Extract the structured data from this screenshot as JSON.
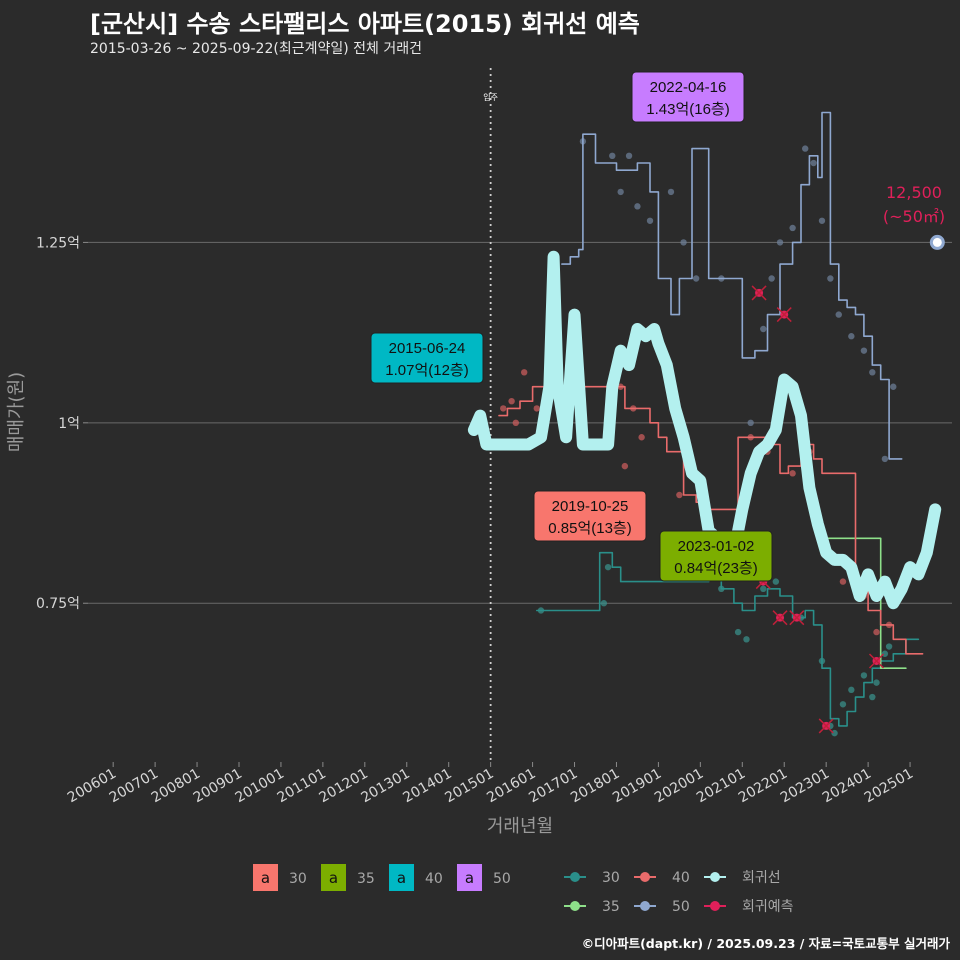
{
  "header": {
    "title": "[군산시] 수송 스타팰리스 아파트(2015) 회귀선 예측",
    "subtitle": "2015-03-26 ~ 2025-09-22(최근계약일) 전체 거래건",
    "caption": "©디아파트(dapt.kr) / 2025.09.23 / 자료=국토교통부 실거래가"
  },
  "chart_data": {
    "type": "line",
    "xlabel": "거래년월",
    "ylabel": "매매가(원)",
    "x_ticks": [
      "200601",
      "200701",
      "200801",
      "200901",
      "201001",
      "201101",
      "201201",
      "201301",
      "201401",
      "201501",
      "201601",
      "201701",
      "201801",
      "201901",
      "202001",
      "202101",
      "202201",
      "202301",
      "202401",
      "202501"
    ],
    "y_ticks": [
      {
        "value": 0.75,
        "label": "0.75억"
      },
      {
        "value": 1.0,
        "label": "1억"
      },
      {
        "value": 1.25,
        "label": "1.25억"
      }
    ],
    "xlim": [
      2005.4,
      2026.0
    ],
    "ylim": [
      0.53,
      1.5
    ],
    "move_in": {
      "x": 2015.0,
      "label": "입주"
    },
    "series": [
      {
        "name": "30",
        "color": "#2a8f8a",
        "points": [
          [
            2016.1,
            0.74
          ],
          [
            2016.4,
            0.74
          ],
          [
            2017.6,
            0.82
          ],
          [
            2017.9,
            0.8
          ],
          [
            2018.1,
            0.78
          ],
          [
            2018.3,
            0.78
          ],
          [
            2020.2,
            0.82
          ],
          [
            2020.5,
            0.77
          ],
          [
            2020.8,
            0.75
          ],
          [
            2021.0,
            0.74
          ],
          [
            2021.3,
            0.76
          ],
          [
            2021.6,
            0.77
          ],
          [
            2021.9,
            0.76
          ],
          [
            2022.2,
            0.73
          ],
          [
            2022.5,
            0.74
          ],
          [
            2022.7,
            0.72
          ],
          [
            2022.9,
            0.66
          ],
          [
            2023.1,
            0.59
          ],
          [
            2023.3,
            0.58
          ],
          [
            2023.5,
            0.6
          ],
          [
            2023.7,
            0.62
          ],
          [
            2023.9,
            0.64
          ],
          [
            2024.1,
            0.66
          ],
          [
            2024.3,
            0.67
          ],
          [
            2024.6,
            0.68
          ],
          [
            2024.9,
            0.7
          ],
          [
            2025.2,
            0.7
          ]
        ]
      },
      {
        "name": "35",
        "color": "#8ee08a",
        "points": [
          [
            2023.0,
            0.84
          ],
          [
            2023.3,
            0.84
          ],
          [
            2024.3,
            0.66
          ],
          [
            2024.9,
            0.66
          ]
        ]
      },
      {
        "name": "40",
        "color": "#e96b6b",
        "points": [
          [
            2015.2,
            1.01
          ],
          [
            2015.4,
            1.02
          ],
          [
            2015.7,
            1.03
          ],
          [
            2016.0,
            1.05
          ],
          [
            2017.2,
            1.05
          ],
          [
            2017.5,
            1.05
          ],
          [
            2017.8,
            1.05
          ],
          [
            2018.2,
            1.02
          ],
          [
            2018.5,
            1.02
          ],
          [
            2018.8,
            1.0
          ],
          [
            2019.0,
            0.98
          ],
          [
            2019.2,
            0.96
          ],
          [
            2019.6,
            0.9
          ],
          [
            2019.9,
            0.89
          ],
          [
            2020.2,
            0.88
          ],
          [
            2020.5,
            0.88
          ],
          [
            2020.9,
            0.98
          ],
          [
            2021.3,
            0.98
          ],
          [
            2021.6,
            0.97
          ],
          [
            2021.9,
            0.93
          ],
          [
            2022.1,
            0.94
          ],
          [
            2022.4,
            0.97
          ],
          [
            2022.7,
            0.95
          ],
          [
            2022.9,
            0.93
          ],
          [
            2023.1,
            0.93
          ],
          [
            2023.7,
            0.77
          ],
          [
            2024.0,
            0.74
          ],
          [
            2024.3,
            0.72
          ],
          [
            2024.6,
            0.7
          ],
          [
            2024.9,
            0.68
          ],
          [
            2025.3,
            0.68
          ]
        ]
      },
      {
        "name": "50",
        "color": "#8fa8d0",
        "points": [
          [
            2016.7,
            1.22
          ],
          [
            2016.9,
            1.23
          ],
          [
            2017.1,
            1.24
          ],
          [
            2017.2,
            1.4
          ],
          [
            2017.5,
            1.36
          ],
          [
            2017.8,
            1.36
          ],
          [
            2018.0,
            1.35
          ],
          [
            2018.3,
            1.35
          ],
          [
            2018.5,
            1.36
          ],
          [
            2018.8,
            1.32
          ],
          [
            2019.0,
            1.2
          ],
          [
            2019.3,
            1.15
          ],
          [
            2019.5,
            1.2
          ],
          [
            2019.8,
            1.38
          ],
          [
            2020.2,
            1.2
          ],
          [
            2020.5,
            1.2
          ],
          [
            2021.0,
            1.09
          ],
          [
            2021.3,
            1.1
          ],
          [
            2021.6,
            1.15
          ],
          [
            2021.9,
            1.22
          ],
          [
            2022.2,
            1.25
          ],
          [
            2022.4,
            1.33
          ],
          [
            2022.6,
            1.37
          ],
          [
            2022.8,
            1.34
          ],
          [
            2022.9,
            1.43
          ],
          [
            2023.1,
            1.22
          ],
          [
            2023.3,
            1.17
          ],
          [
            2023.5,
            1.16
          ],
          [
            2023.7,
            1.15
          ],
          [
            2023.9,
            1.12
          ],
          [
            2024.1,
            1.08
          ],
          [
            2024.3,
            1.06
          ],
          [
            2024.5,
            0.95
          ],
          [
            2024.8,
            0.95
          ]
        ]
      },
      {
        "name": "회귀선",
        "color": "#b3f0ef",
        "points": [
          [
            2014.6,
            0.99
          ],
          [
            2014.75,
            1.01
          ],
          [
            2014.9,
            0.97
          ],
          [
            2015.2,
            0.97
          ],
          [
            2015.6,
            0.97
          ],
          [
            2015.9,
            0.97
          ],
          [
            2016.2,
            0.98
          ],
          [
            2016.4,
            1.05
          ],
          [
            2016.5,
            1.23
          ],
          [
            2016.6,
            1.05
          ],
          [
            2016.8,
            0.98
          ],
          [
            2017.0,
            1.15
          ],
          [
            2017.2,
            0.97
          ],
          [
            2017.5,
            0.97
          ],
          [
            2017.8,
            0.97
          ],
          [
            2017.9,
            1.05
          ],
          [
            2018.1,
            1.1
          ],
          [
            2018.3,
            1.08
          ],
          [
            2018.5,
            1.13
          ],
          [
            2018.7,
            1.12
          ],
          [
            2018.9,
            1.13
          ],
          [
            2019.0,
            1.11
          ],
          [
            2019.2,
            1.08
          ],
          [
            2019.4,
            1.02
          ],
          [
            2019.6,
            0.98
          ],
          [
            2019.8,
            0.93
          ],
          [
            2020.0,
            0.92
          ],
          [
            2020.2,
            0.85
          ],
          [
            2020.4,
            0.84
          ],
          [
            2020.6,
            0.82
          ],
          [
            2020.8,
            0.82
          ],
          [
            2021.0,
            0.88
          ],
          [
            2021.2,
            0.93
          ],
          [
            2021.4,
            0.96
          ],
          [
            2021.6,
            0.97
          ],
          [
            2021.8,
            0.99
          ],
          [
            2022.0,
            1.06
          ],
          [
            2022.2,
            1.05
          ],
          [
            2022.4,
            1.01
          ],
          [
            2022.6,
            0.91
          ],
          [
            2022.8,
            0.86
          ],
          [
            2023.0,
            0.82
          ],
          [
            2023.2,
            0.81
          ],
          [
            2023.4,
            0.81
          ],
          [
            2023.6,
            0.8
          ],
          [
            2023.8,
            0.76
          ],
          [
            2024.0,
            0.79
          ],
          [
            2024.2,
            0.76
          ],
          [
            2024.4,
            0.78
          ],
          [
            2024.6,
            0.75
          ],
          [
            2024.8,
            0.77
          ],
          [
            2025.0,
            0.8
          ],
          [
            2025.2,
            0.79
          ],
          [
            2025.4,
            0.82
          ],
          [
            2025.6,
            0.88
          ]
        ]
      }
    ],
    "scatter": [
      {
        "name": "30",
        "color": "#3a8f8a",
        "points": [
          [
            2016.2,
            0.74
          ],
          [
            2017.8,
            0.8
          ],
          [
            2017.7,
            0.75
          ],
          [
            2020.5,
            0.77
          ],
          [
            2020.9,
            0.71
          ],
          [
            2021.1,
            0.7
          ],
          [
            2021.5,
            0.77
          ],
          [
            2021.8,
            0.78
          ],
          [
            2022.4,
            0.73
          ],
          [
            2022.9,
            0.67
          ],
          [
            2023.1,
            0.58
          ],
          [
            2023.2,
            0.57
          ],
          [
            2023.4,
            0.61
          ],
          [
            2023.6,
            0.63
          ],
          [
            2023.9,
            0.65
          ],
          [
            2024.1,
            0.62
          ],
          [
            2024.2,
            0.64
          ],
          [
            2024.4,
            0.68
          ],
          [
            2024.5,
            0.69
          ]
        ]
      },
      {
        "name": "40",
        "color": "#c85c5c",
        "points": [
          [
            2015.3,
            1.02
          ],
          [
            2015.5,
            1.03
          ],
          [
            2015.6,
            1.0
          ],
          [
            2015.8,
            1.07
          ],
          [
            2016.1,
            1.02
          ],
          [
            2018.1,
            1.05
          ],
          [
            2018.2,
            0.94
          ],
          [
            2018.4,
            1.02
          ],
          [
            2018.6,
            0.98
          ],
          [
            2019.5,
            0.9
          ],
          [
            2021.2,
            0.98
          ],
          [
            2021.6,
            0.96
          ],
          [
            2022.2,
            0.93
          ],
          [
            2022.6,
            0.96
          ],
          [
            2023.4,
            0.78
          ],
          [
            2023.9,
            0.76
          ],
          [
            2024.2,
            0.71
          ],
          [
            2024.5,
            0.72
          ]
        ]
      },
      {
        "name": "50",
        "color": "#6c7e96",
        "points": [
          [
            2017.2,
            1.39
          ],
          [
            2017.9,
            1.37
          ],
          [
            2018.1,
            1.32
          ],
          [
            2018.3,
            1.37
          ],
          [
            2018.5,
            1.3
          ],
          [
            2018.8,
            1.28
          ],
          [
            2019.3,
            1.32
          ],
          [
            2019.6,
            1.25
          ],
          [
            2019.9,
            1.2
          ],
          [
            2020.5,
            1.2
          ],
          [
            2021.2,
            1.0
          ],
          [
            2021.5,
            1.13
          ],
          [
            2021.7,
            1.2
          ],
          [
            2021.9,
            1.25
          ],
          [
            2022.2,
            1.27
          ],
          [
            2022.5,
            1.38
          ],
          [
            2022.7,
            1.36
          ],
          [
            2022.9,
            1.28
          ],
          [
            2023.1,
            1.2
          ],
          [
            2023.3,
            1.15
          ],
          [
            2023.6,
            1.12
          ],
          [
            2023.9,
            1.1
          ],
          [
            2024.1,
            1.07
          ],
          [
            2024.4,
            0.95
          ],
          [
            2024.6,
            1.05
          ]
        ]
      }
    ],
    "predictions": [
      [
        2021.5,
        0.78
      ],
      [
        2021.9,
        0.73
      ],
      [
        2023.0,
        0.58
      ],
      [
        2024.2,
        0.67
      ],
      [
        2022.0,
        1.15
      ],
      [
        2021.4,
        1.18
      ],
      [
        2022.3,
        0.73
      ]
    ],
    "latest_point": {
      "x": 2025.65,
      "y": 1.25,
      "color": "#ffffff",
      "ring": "#8fa8d0"
    },
    "annotations": [
      {
        "date": "2015-06-24",
        "price": "1.07억(12층)",
        "fill": "#00b8c4",
        "x": 2015.5,
        "y": 1.07
      },
      {
        "date": "2022-04-16",
        "price": "1.43억(16층)",
        "fill": "#c77cff",
        "x": 2022.3,
        "y": 1.43
      },
      {
        "date": "2019-10-25",
        "price": "0.85억(13층)",
        "fill": "#f8766d",
        "x": 2019.8,
        "y": 0.85
      },
      {
        "date": "2023-01-02",
        "price": "0.84억(23층)",
        "fill": "#7cae00",
        "x": 2023.0,
        "y": 0.84
      }
    ],
    "prediction_label": {
      "value": "12,500",
      "area": "(~50㎡)",
      "color": "#e0205a"
    },
    "legend_boxes": [
      {
        "label": "30",
        "glyph": "a",
        "color": "#f8766d"
      },
      {
        "label": "35",
        "glyph": "a",
        "color": "#7cae00"
      },
      {
        "label": "40",
        "glyph": "a",
        "color": "#00b8c4"
      },
      {
        "label": "50",
        "glyph": "a",
        "color": "#c77cff"
      }
    ],
    "legend_lines": [
      {
        "label": "30",
        "color": "#2a8f8a",
        "type": "dot"
      },
      {
        "label": "40",
        "color": "#e96b6b",
        "type": "dot"
      },
      {
        "label": "회귀선",
        "color": "#b3f0ef",
        "type": "dot"
      },
      {
        "label": "35",
        "color": "#8ee08a",
        "type": "dot"
      },
      {
        "label": "50",
        "color": "#8fa8d0",
        "type": "dot"
      },
      {
        "label": "회귀예측",
        "color": "#e0205a",
        "type": "dot"
      }
    ]
  }
}
